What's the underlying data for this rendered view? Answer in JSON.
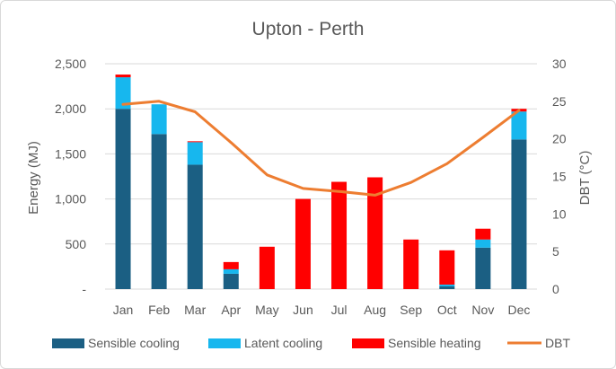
{
  "chart_data": {
    "type": "bar",
    "stacked": true,
    "title": "Upton - Perth",
    "categories": [
      "Jan",
      "Feb",
      "Mar",
      "Apr",
      "May",
      "Jun",
      "Jul",
      "Aug",
      "Sep",
      "Oct",
      "Nov",
      "Dec"
    ],
    "ylabel": "Energy (MJ)",
    "y2label": "DBT (°C)",
    "ylim": [
      0,
      2500
    ],
    "y2lim": [
      0,
      30
    ],
    "yticks": [
      "-",
      "500",
      "1,000",
      "1,500",
      "2,000",
      "2,500"
    ],
    "y2ticks": [
      "0",
      "5",
      "10",
      "15",
      "20",
      "25",
      "30"
    ],
    "grid": true,
    "legend_position": "bottom",
    "series": [
      {
        "name": "Sensible cooling",
        "kind": "bar",
        "color": "#1b5f83",
        "values": [
          2000,
          1720,
          1380,
          170,
          0,
          0,
          0,
          0,
          0,
          30,
          460,
          1660
        ]
      },
      {
        "name": "Latent cooling",
        "kind": "bar",
        "color": "#17b7ee",
        "values": [
          350,
          330,
          250,
          50,
          0,
          0,
          0,
          0,
          0,
          20,
          90,
          310
        ]
      },
      {
        "name": "Sensible heating",
        "kind": "bar",
        "color": "#ff0000",
        "values": [
          30,
          0,
          10,
          80,
          470,
          1000,
          1190,
          1240,
          550,
          380,
          120,
          30
        ]
      },
      {
        "name": "DBT",
        "kind": "line",
        "axis": "right",
        "color": "#ed7d31",
        "values": [
          24.6,
          25.0,
          23.6,
          19.5,
          15.2,
          13.4,
          13.0,
          12.5,
          14.2,
          16.7,
          20.2,
          23.8
        ]
      }
    ]
  }
}
